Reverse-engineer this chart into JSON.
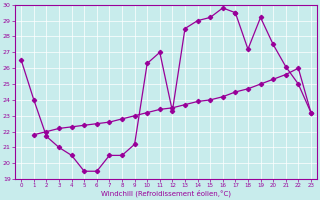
{
  "background_color": "#c8ecec",
  "line_color": "#990099",
  "xlabel": "Windchill (Refroidissement éolien,°C)",
  "xlim_min": -0.5,
  "xlim_max": 23.5,
  "ylim_min": 19,
  "ylim_max": 30,
  "xticks": [
    0,
    1,
    2,
    3,
    4,
    5,
    6,
    7,
    8,
    9,
    10,
    11,
    12,
    13,
    14,
    15,
    16,
    17,
    18,
    19,
    20,
    21,
    22,
    23
  ],
  "yticks": [
    19,
    20,
    21,
    22,
    23,
    24,
    25,
    26,
    27,
    28,
    29,
    30
  ],
  "line1_x": [
    0,
    1,
    2,
    3,
    4,
    5,
    6,
    7,
    8,
    9,
    10,
    11,
    12,
    13,
    14,
    15,
    16,
    17
  ],
  "line1_y": [
    26.5,
    24.0,
    21.7,
    21.0,
    20.5,
    19.5,
    19.5,
    20.5,
    20.5,
    21.2,
    26.3,
    27.0,
    23.3,
    28.5,
    29.0,
    29.2,
    29.8,
    29.5
  ],
  "line2_x": [
    17,
    18,
    19,
    20,
    21,
    22,
    23
  ],
  "line2_y": [
    29.5,
    27.2,
    29.2,
    27.5,
    26.1,
    25.0,
    23.2
  ],
  "line3_x": [
    1,
    2,
    3,
    4,
    5,
    6,
    7,
    8,
    9,
    10,
    11,
    12,
    13,
    14,
    15,
    16,
    17,
    18,
    19,
    20,
    21,
    22,
    23
  ],
  "line3_y": [
    21.8,
    22.0,
    22.2,
    22.3,
    22.4,
    22.5,
    22.6,
    22.8,
    23.0,
    23.2,
    23.4,
    23.5,
    23.7,
    23.9,
    24.0,
    24.2,
    24.5,
    24.7,
    25.0,
    25.3,
    25.6,
    26.0,
    23.2
  ]
}
